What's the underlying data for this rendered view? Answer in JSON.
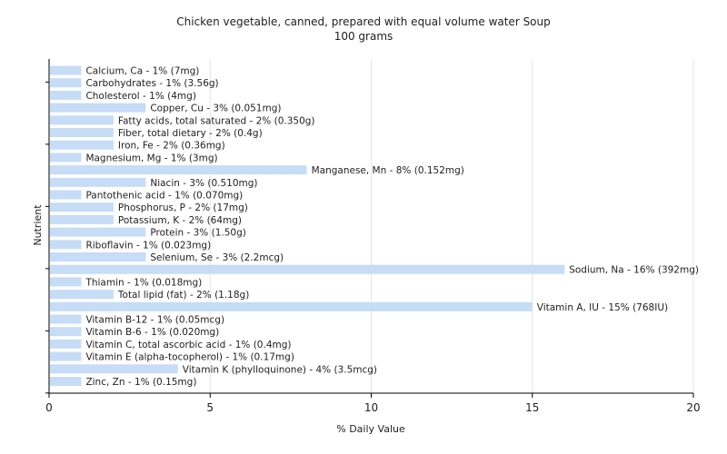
{
  "chart_data": {
    "type": "bar",
    "orientation": "horizontal",
    "title": "Chicken vegetable, canned, prepared with equal volume water Soup",
    "subtitle": "100 grams",
    "xlabel": "% Daily Value",
    "ylabel": "Nutrient",
    "xlim": [
      0,
      20
    ],
    "xticks": [
      0,
      5,
      10,
      15,
      20
    ],
    "grid": true,
    "bar_color": "#c6dcf7",
    "categories": [
      "Calcium, Ca - 1% (7mg)",
      "Carbohydrates - 1% (3.56g)",
      "Cholesterol - 1% (4mg)",
      "Copper, Cu - 3% (0.051mg)",
      "Fatty acids, total saturated - 2% (0.350g)",
      "Fiber, total dietary - 2% (0.4g)",
      "Iron, Fe - 2% (0.36mg)",
      "Magnesium, Mg - 1% (3mg)",
      "Manganese, Mn - 8% (0.152mg)",
      "Niacin - 3% (0.510mg)",
      "Pantothenic acid - 1% (0.070mg)",
      "Phosphorus, P - 2% (17mg)",
      "Potassium, K - 2% (64mg)",
      "Protein - 3% (1.50g)",
      "Riboflavin - 1% (0.023mg)",
      "Selenium, Se - 3% (2.2mcg)",
      "Sodium, Na - 16% (392mg)",
      "Thiamin - 1% (0.018mg)",
      "Total lipid (fat) - 2% (1.18g)",
      "Vitamin A, IU - 15% (768IU)",
      "Vitamin B-12 - 1% (0.05mcg)",
      "Vitamin B-6 - 1% (0.020mg)",
      "Vitamin C, total ascorbic acid - 1% (0.4mg)",
      "Vitamin E (alpha-tocopherol) - 1% (0.17mg)",
      "Vitamin K (phylloquinone) - 4% (3.5mcg)",
      "Zinc, Zn - 1% (0.15mg)"
    ],
    "values": [
      1,
      1,
      1,
      3,
      2,
      2,
      2,
      1,
      8,
      3,
      1,
      2,
      2,
      3,
      1,
      3,
      16,
      1,
      2,
      15,
      1,
      1,
      1,
      1,
      4,
      1
    ]
  }
}
